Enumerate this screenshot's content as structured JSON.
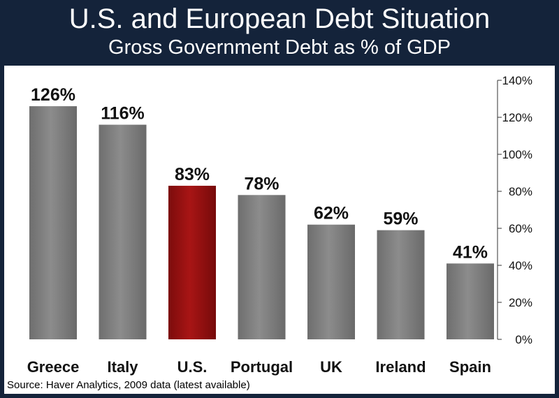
{
  "header": {
    "title": "U.S. and European Debt Situation",
    "subtitle": "Gross Government Debt as % of GDP"
  },
  "source": "Source: Haver Analytics, 2009 data (latest available)",
  "colors": {
    "background": "#14233a",
    "bar": "#7f7f7f",
    "highlight": "#9b1111"
  },
  "chart_data": {
    "type": "bar",
    "title": "U.S. and European Debt Situation",
    "subtitle": "Gross Government Debt as % of GDP",
    "categories": [
      "Greece",
      "Italy",
      "U.S.",
      "Portugal",
      "UK",
      "Ireland",
      "Spain"
    ],
    "values": [
      126,
      116,
      83,
      78,
      62,
      59,
      41
    ],
    "data_labels": [
      "126%",
      "116%",
      "83%",
      "78%",
      "62%",
      "59%",
      "41%"
    ],
    "highlight_category": "U.S.",
    "y_axis": {
      "position": "right",
      "ylim": [
        0,
        140
      ],
      "ticks": [
        "0%",
        "20%",
        "40%",
        "60%",
        "80%",
        "100%",
        "120%",
        "140%"
      ]
    },
    "grid": false,
    "legend": "none"
  }
}
